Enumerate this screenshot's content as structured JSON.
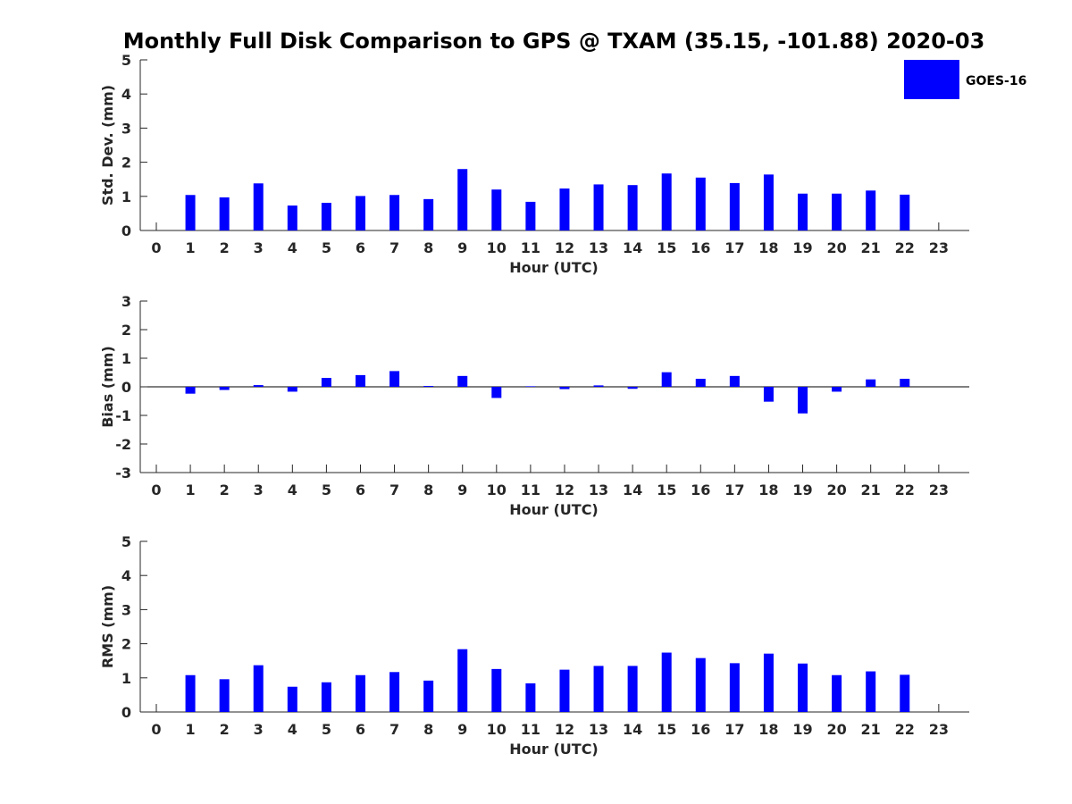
{
  "chart_data": {
    "title": "Monthly Full Disk Comparison to GPS @ TXAM (35.15, -101.88) 2020-03",
    "legend": {
      "label": "GOES-16",
      "color": "#0000ff",
      "placement": "top-right"
    },
    "panels": [
      {
        "type": "bar",
        "ylabel": "Std. Dev. (mm)",
        "xlabel": "Hour (UTC)",
        "ylim": [
          0,
          5
        ],
        "yticks": [
          0,
          1,
          2,
          3,
          4,
          5
        ],
        "categories": [
          0,
          1,
          2,
          3,
          4,
          5,
          6,
          7,
          8,
          9,
          10,
          11,
          12,
          13,
          14,
          15,
          16,
          17,
          18,
          19,
          20,
          21,
          22,
          23
        ],
        "values": [
          null,
          1.04,
          0.97,
          1.38,
          0.73,
          0.81,
          1.01,
          1.04,
          0.92,
          1.8,
          1.2,
          0.84,
          1.23,
          1.35,
          1.33,
          1.67,
          1.55,
          1.39,
          1.64,
          1.08,
          1.08,
          1.17,
          1.05,
          null
        ]
      },
      {
        "type": "bar",
        "ylabel": "Bias (mm)",
        "xlabel": "Hour (UTC)",
        "ylim": [
          -3,
          3
        ],
        "yticks": [
          -3,
          -2,
          -1,
          0,
          1,
          2,
          3
        ],
        "categories": [
          0,
          1,
          2,
          3,
          4,
          5,
          6,
          7,
          8,
          9,
          10,
          11,
          12,
          13,
          14,
          15,
          16,
          17,
          18,
          19,
          20,
          21,
          22,
          23
        ],
        "values": [
          null,
          -0.24,
          -0.11,
          0.06,
          -0.17,
          0.31,
          0.41,
          0.55,
          0.03,
          0.38,
          -0.39,
          0.02,
          -0.08,
          0.05,
          -0.07,
          0.51,
          0.28,
          0.38,
          -0.52,
          -0.93,
          -0.17,
          0.26,
          0.28,
          null
        ]
      },
      {
        "type": "bar",
        "ylabel": "RMS (mm)",
        "xlabel": "Hour (UTC)",
        "ylim": [
          0,
          5
        ],
        "yticks": [
          0,
          1,
          2,
          3,
          4,
          5
        ],
        "categories": [
          0,
          1,
          2,
          3,
          4,
          5,
          6,
          7,
          8,
          9,
          10,
          11,
          12,
          13,
          14,
          15,
          16,
          17,
          18,
          19,
          20,
          21,
          22,
          23
        ],
        "values": [
          null,
          1.08,
          0.96,
          1.37,
          0.74,
          0.87,
          1.08,
          1.17,
          0.92,
          1.84,
          1.26,
          0.84,
          1.24,
          1.35,
          1.35,
          1.74,
          1.58,
          1.43,
          1.71,
          1.42,
          1.08,
          1.19,
          1.09,
          null
        ]
      }
    ]
  }
}
